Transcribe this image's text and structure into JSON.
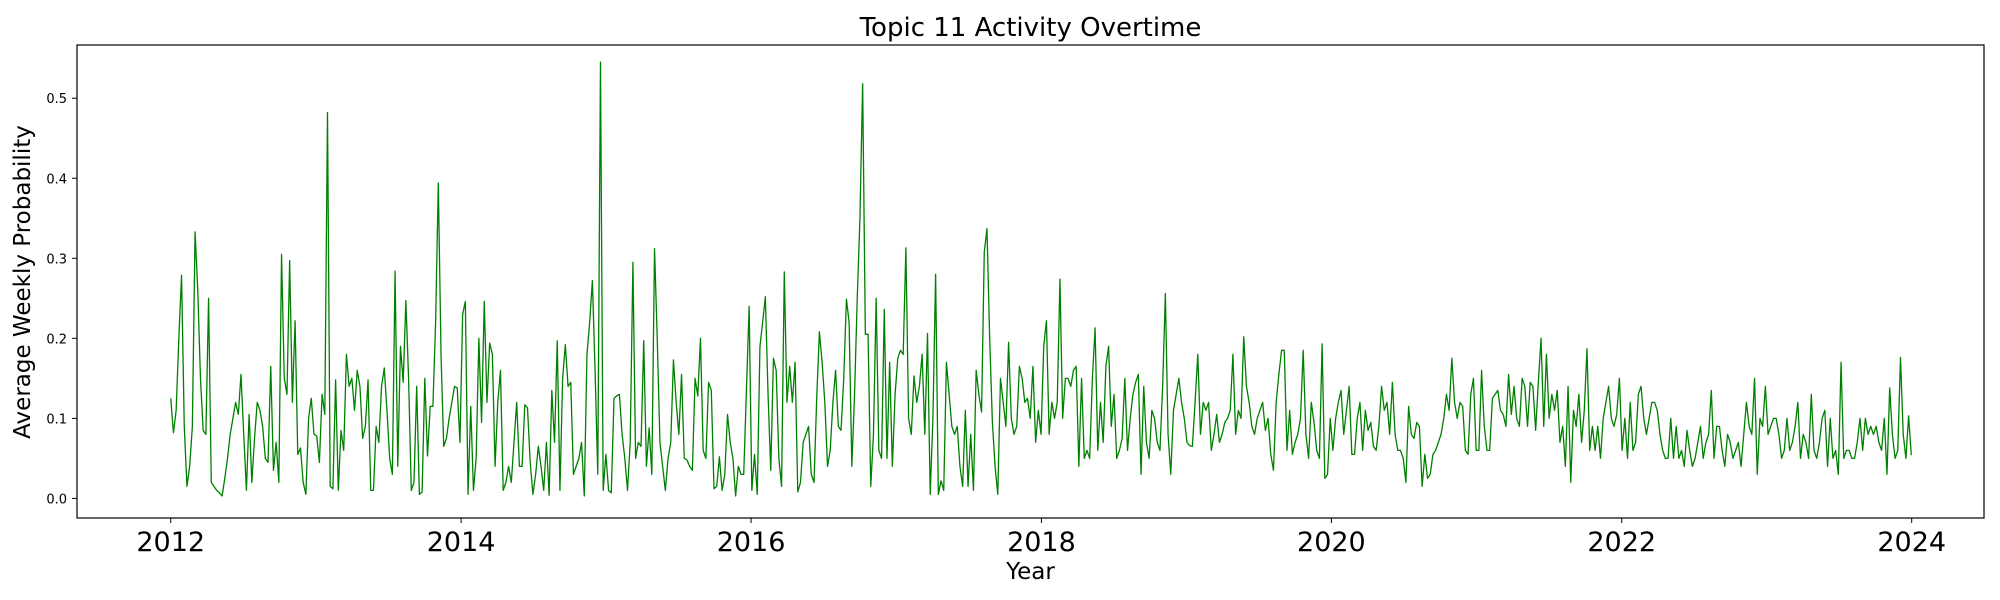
{
  "chart_data": {
    "type": "line",
    "title": "Topic 11 Activity Overtime",
    "xlabel": "Year",
    "ylabel": "Average Weekly Probability",
    "x_range": [
      "2011-05-10",
      "2024-07-01"
    ],
    "ylim": [
      -0.0245,
      0.5665
    ],
    "x_tick_labels": [
      "2012",
      "2014",
      "2016",
      "2018",
      "2020",
      "2022",
      "2024"
    ],
    "y_tick_labels": [
      "0.0",
      "0.1",
      "0.2",
      "0.3",
      "0.4",
      "0.5"
    ],
    "x_start": "2012-01-01",
    "x_end": "2023-12-31",
    "x_step": "weekly",
    "grid": false,
    "legend": "none",
    "line_color": "#008000",
    "series": [
      {
        "values": [
          0.125,
          0.082,
          0.11,
          0.2,
          0.279,
          0.09,
          0.015,
          0.04,
          0.09,
          0.333,
          0.26,
          0.15,
          0.085,
          0.08,
          0.25,
          0.02,
          0.015,
          0.01,
          0.007,
          0.003,
          0.025,
          0.05,
          0.08,
          0.1,
          0.12,
          0.105,
          0.155,
          0.08,
          0.01,
          0.105,
          0.02,
          0.075,
          0.12,
          0.11,
          0.09,
          0.05,
          0.045,
          0.165,
          0.035,
          0.07,
          0.02,
          0.305,
          0.15,
          0.13,
          0.297,
          0.12,
          0.222,
          0.055,
          0.063,
          0.02,
          0.005,
          0.1,
          0.125,
          0.08,
          0.078,
          0.045,
          0.13,
          0.105,
          0.482,
          0.015,
          0.012,
          0.148,
          0.01,
          0.085,
          0.06,
          0.18,
          0.14,
          0.15,
          0.11,
          0.16,
          0.14,
          0.075,
          0.09,
          0.148,
          0.01,
          0.01,
          0.09,
          0.07,
          0.14,
          0.163,
          0.11,
          0.05,
          0.03,
          0.284,
          0.04,
          0.19,
          0.145,
          0.247,
          0.15,
          0.01,
          0.02,
          0.14,
          0.005,
          0.008,
          0.15,
          0.053,
          0.115,
          0.115,
          0.22,
          0.394,
          0.18,
          0.065,
          0.075,
          0.1,
          0.12,
          0.14,
          0.138,
          0.07,
          0.23,
          0.246,
          0.005,
          0.115,
          0.01,
          0.05,
          0.2,
          0.095,
          0.246,
          0.12,
          0.194,
          0.18,
          0.04,
          0.12,
          0.16,
          0.01,
          0.02,
          0.04,
          0.02,
          0.07,
          0.12,
          0.04,
          0.04,
          0.117,
          0.113,
          0.045,
          0.005,
          0.03,
          0.065,
          0.04,
          0.01,
          0.07,
          0.004,
          0.135,
          0.07,
          0.197,
          0.01,
          0.15,
          0.192,
          0.14,
          0.145,
          0.03,
          0.04,
          0.05,
          0.07,
          0.003,
          0.18,
          0.22,
          0.272,
          0.16,
          0.03,
          0.545,
          0.01,
          0.055,
          0.01,
          0.007,
          0.125,
          0.128,
          0.13,
          0.08,
          0.05,
          0.01,
          0.07,
          0.295,
          0.05,
          0.07,
          0.065,
          0.197,
          0.04,
          0.088,
          0.03,
          0.312,
          0.2,
          0.07,
          0.04,
          0.01,
          0.05,
          0.07,
          0.173,
          0.12,
          0.08,
          0.155,
          0.05,
          0.048,
          0.04,
          0.035,
          0.15,
          0.128,
          0.2,
          0.06,
          0.05,
          0.145,
          0.135,
          0.012,
          0.015,
          0.052,
          0.01,
          0.03,
          0.105,
          0.07,
          0.05,
          0.003,
          0.04,
          0.03,
          0.03,
          0.135,
          0.24,
          0.01,
          0.055,
          0.005,
          0.19,
          0.22,
          0.252,
          0.13,
          0.035,
          0.175,
          0.16,
          0.05,
          0.015,
          0.283,
          0.12,
          0.165,
          0.12,
          0.17,
          0.008,
          0.02,
          0.07,
          0.08,
          0.09,
          0.03,
          0.02,
          0.125,
          0.208,
          0.17,
          0.12,
          0.04,
          0.06,
          0.12,
          0.16,
          0.09,
          0.085,
          0.15,
          0.249,
          0.22,
          0.04,
          0.13,
          0.25,
          0.35,
          0.518,
          0.205,
          0.205,
          0.015,
          0.08,
          0.25,
          0.06,
          0.05,
          0.236,
          0.05,
          0.17,
          0.04,
          0.13,
          0.175,
          0.185,
          0.18,
          0.313,
          0.1,
          0.08,
          0.153,
          0.12,
          0.14,
          0.18,
          0.08,
          0.206,
          0.005,
          0.1,
          0.28,
          0.005,
          0.022,
          0.01,
          0.17,
          0.13,
          0.09,
          0.08,
          0.09,
          0.04,
          0.015,
          0.11,
          0.015,
          0.08,
          0.01,
          0.16,
          0.13,
          0.108,
          0.308,
          0.337,
          0.2,
          0.095,
          0.04,
          0.005,
          0.15,
          0.12,
          0.09,
          0.195,
          0.1,
          0.08,
          0.09,
          0.165,
          0.15,
          0.12,
          0.125,
          0.1,
          0.165,
          0.07,
          0.11,
          0.08,
          0.19,
          0.222,
          0.08,
          0.12,
          0.1,
          0.12,
          0.274,
          0.1,
          0.15,
          0.15,
          0.14,
          0.16,
          0.165,
          0.04,
          0.15,
          0.05,
          0.06,
          0.05,
          0.15,
          0.213,
          0.06,
          0.12,
          0.07,
          0.165,
          0.19,
          0.09,
          0.13,
          0.05,
          0.06,
          0.075,
          0.15,
          0.06,
          0.1,
          0.13,
          0.145,
          0.155,
          0.03,
          0.14,
          0.07,
          0.05,
          0.11,
          0.1,
          0.07,
          0.06,
          0.14,
          0.256,
          0.08,
          0.03,
          0.11,
          0.13,
          0.15,
          0.12,
          0.1,
          0.07,
          0.066,
          0.065,
          0.12,
          0.18,
          0.08,
          0.12,
          0.11,
          0.12,
          0.06,
          0.08,
          0.105,
          0.07,
          0.08,
          0.095,
          0.1,
          0.11,
          0.18,
          0.08,
          0.11,
          0.1,
          0.202,
          0.14,
          0.12,
          0.09,
          0.08,
          0.1,
          0.11,
          0.12,
          0.085,
          0.1,
          0.055,
          0.035,
          0.12,
          0.155,
          0.185,
          0.185,
          0.06,
          0.11,
          0.055,
          0.07,
          0.08,
          0.1,
          0.185,
          0.08,
          0.05,
          0.12,
          0.095,
          0.06,
          0.05,
          0.193,
          0.025,
          0.03,
          0.1,
          0.06,
          0.1,
          0.12,
          0.135,
          0.08,
          0.11,
          0.14,
          0.055,
          0.055,
          0.1,
          0.12,
          0.06,
          0.11,
          0.085,
          0.095,
          0.065,
          0.06,
          0.09,
          0.14,
          0.11,
          0.12,
          0.08,
          0.145,
          0.08,
          0.06,
          0.06,
          0.05,
          0.02,
          0.115,
          0.08,
          0.075,
          0.095,
          0.09,
          0.015,
          0.055,
          0.025,
          0.03,
          0.055,
          0.06,
          0.07,
          0.08,
          0.1,
          0.13,
          0.11,
          0.175,
          0.12,
          0.1,
          0.12,
          0.115,
          0.06,
          0.055,
          0.13,
          0.15,
          0.06,
          0.06,
          0.16,
          0.09,
          0.06,
          0.06,
          0.125,
          0.13,
          0.135,
          0.11,
          0.105,
          0.09,
          0.155,
          0.105,
          0.14,
          0.1,
          0.09,
          0.15,
          0.14,
          0.09,
          0.145,
          0.14,
          0.085,
          0.145,
          0.2,
          0.09,
          0.18,
          0.1,
          0.13,
          0.11,
          0.135,
          0.07,
          0.09,
          0.04,
          0.14,
          0.02,
          0.11,
          0.09,
          0.13,
          0.07,
          0.11,
          0.187,
          0.06,
          0.09,
          0.06,
          0.09,
          0.05,
          0.1,
          0.12,
          0.14,
          0.1,
          0.09,
          0.105,
          0.15,
          0.06,
          0.1,
          0.05,
          0.12,
          0.06,
          0.07,
          0.13,
          0.14,
          0.1,
          0.08,
          0.1,
          0.12,
          0.12,
          0.11,
          0.08,
          0.06,
          0.05,
          0.05,
          0.1,
          0.05,
          0.09,
          0.05,
          0.06,
          0.04,
          0.085,
          0.06,
          0.04,
          0.05,
          0.07,
          0.09,
          0.05,
          0.07,
          0.08,
          0.135,
          0.05,
          0.09,
          0.09,
          0.06,
          0.04,
          0.08,
          0.07,
          0.05,
          0.06,
          0.07,
          0.04,
          0.08,
          0.12,
          0.09,
          0.08,
          0.15,
          0.03,
          0.1,
          0.09,
          0.14,
          0.08,
          0.09,
          0.1,
          0.1,
          0.08,
          0.05,
          0.06,
          0.1,
          0.06,
          0.07,
          0.09,
          0.12,
          0.05,
          0.08,
          0.07,
          0.05,
          0.13,
          0.06,
          0.05,
          0.07,
          0.1,
          0.11,
          0.04,
          0.1,
          0.05,
          0.06,
          0.03,
          0.17,
          0.05,
          0.06,
          0.06,
          0.05,
          0.05,
          0.07,
          0.1,
          0.06,
          0.1,
          0.08,
          0.09,
          0.08,
          0.09,
          0.07,
          0.06,
          0.1,
          0.03,
          0.138,
          0.08,
          0.05,
          0.06,
          0.176,
          0.08,
          0.05,
          0.103,
          0.054
        ]
      }
    ]
  }
}
